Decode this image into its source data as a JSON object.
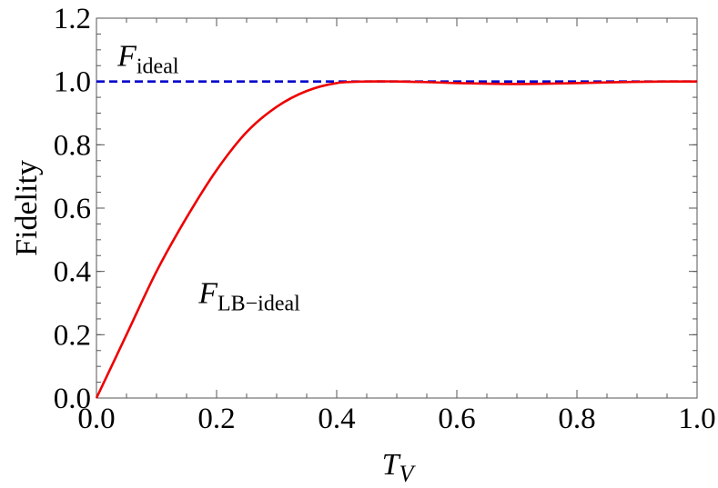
{
  "chart_data": {
    "type": "line",
    "title": "",
    "xlabel": {
      "main": "T",
      "sub": "V"
    },
    "ylabel": "Fidelity",
    "xlim": [
      0,
      1
    ],
    "ylim": [
      0,
      1.2
    ],
    "x_ticks": [
      "0.0",
      "0.2",
      "0.4",
      "0.6",
      "0.8",
      "1.0"
    ],
    "y_ticks": [
      "0.0",
      "0.2",
      "0.4",
      "0.6",
      "0.8",
      "1.0",
      "1.2"
    ],
    "grid": false,
    "series": [
      {
        "name": "F_ideal",
        "color": "#0000cc",
        "style": "dashed",
        "x": [
          0.0,
          1.0
        ],
        "y": [
          1.0,
          1.0
        ]
      },
      {
        "name": "F_LB-ideal",
        "color": "#ee0000",
        "style": "solid",
        "x": [
          0.0,
          0.05,
          0.1,
          0.15,
          0.2,
          0.25,
          0.3,
          0.35,
          0.4,
          0.45,
          0.5,
          0.55,
          0.6,
          0.65,
          0.7,
          0.75,
          0.8,
          0.85,
          0.9,
          0.95,
          1.0
        ],
        "y": [
          0.0,
          0.2,
          0.4,
          0.57,
          0.72,
          0.84,
          0.92,
          0.97,
          0.995,
          1.0,
          1.0,
          0.998,
          0.995,
          0.993,
          0.992,
          0.993,
          0.995,
          0.997,
          0.999,
          1.0,
          1.0
        ]
      }
    ],
    "annotations": [
      {
        "main": "F",
        "sub": "ideal",
        "x": 0.035,
        "y": 1.05
      },
      {
        "main": "F",
        "sub": "LB−ideal",
        "x": 0.17,
        "y": 0.3
      }
    ]
  }
}
